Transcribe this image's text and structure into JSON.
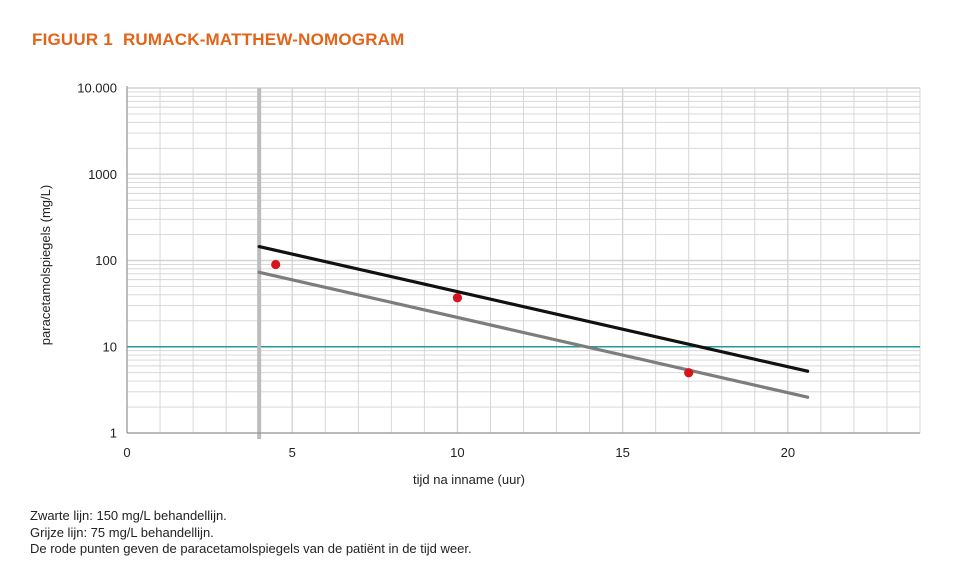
{
  "figure": {
    "number": "FIGUUR 1",
    "title": "RUMACK-MATTHEW-NOMOGRAM"
  },
  "notes": [
    "Zwarte lijn: 150 mg/L behandellijn.",
    "Grijze lijn: 75 mg/L behandellijn.",
    "De rode punten geven de paracetamolspiegels van de patiënt in de tijd weer."
  ],
  "colors": {
    "title": "#e3631a",
    "treatment_150": "#111111",
    "treatment_75": "#7d7d7d",
    "patient_points": "#d7141e",
    "threshold_line": "#1f9a9a",
    "grid": "#d4d4d4",
    "marker_4h": "#bdbdbd"
  },
  "chart_data": {
    "type": "line",
    "title": "RUMACK-MATTHEW-NOMOGRAM",
    "xlabel": "tijd na inname (uur)",
    "ylabel": "paracetamolspiegels (mg/L)",
    "xlim": [
      0,
      24
    ],
    "ylim": [
      1,
      10000
    ],
    "yscale": "log",
    "x_ticks": [
      0,
      5,
      10,
      15,
      20
    ],
    "y_ticks": [
      1,
      10,
      100,
      1000,
      10000
    ],
    "y_tick_labels": [
      "1",
      "10",
      "100",
      "1000",
      "10.000"
    ],
    "grid": true,
    "series": [
      {
        "key": "treatment_150",
        "kind": "line",
        "x": [
          4,
          20.6
        ],
        "y": [
          145,
          5.2
        ]
      },
      {
        "key": "treatment_75",
        "kind": "line",
        "x": [
          4,
          20.6
        ],
        "y": [
          73,
          2.6
        ]
      },
      {
        "key": "patient_points",
        "kind": "scatter",
        "x": [
          4.5,
          10,
          17
        ],
        "y": [
          90,
          37,
          5
        ]
      }
    ],
    "reference_lines": [
      {
        "key": "threshold_line",
        "orientation": "horizontal",
        "y": 10
      },
      {
        "key": "marker_4h",
        "orientation": "vertical",
        "x": 4
      }
    ]
  }
}
